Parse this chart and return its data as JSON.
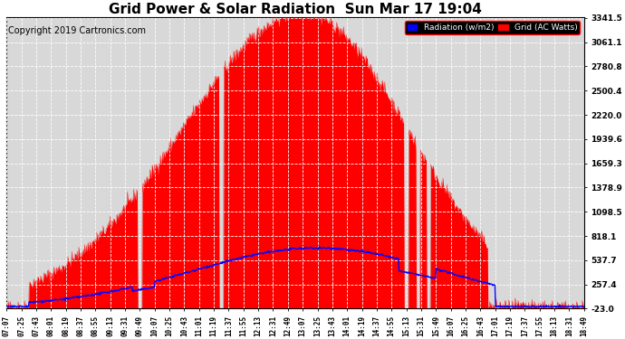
{
  "title": "Grid Power & Solar Radiation  Sun Mar 17 19:04",
  "copyright": "Copyright 2019 Cartronics.com",
  "y_ticks": [
    3341.5,
    3061.1,
    2780.8,
    2500.4,
    2220.0,
    1939.6,
    1659.3,
    1378.9,
    1098.5,
    818.1,
    537.7,
    257.4,
    -23.0
  ],
  "x_labels": [
    "07:07",
    "07:25",
    "07:43",
    "08:01",
    "08:19",
    "08:37",
    "08:55",
    "09:13",
    "09:31",
    "09:49",
    "10:07",
    "10:25",
    "10:43",
    "11:01",
    "11:19",
    "11:37",
    "11:55",
    "12:13",
    "12:31",
    "12:49",
    "13:07",
    "13:25",
    "13:43",
    "14:01",
    "14:19",
    "14:37",
    "14:55",
    "15:13",
    "15:31",
    "15:49",
    "16:07",
    "16:25",
    "16:43",
    "17:01",
    "17:19",
    "17:37",
    "17:55",
    "18:13",
    "18:31",
    "18:49"
  ],
  "legend_radiation_color": "#0000ff",
  "legend_radiation_label": "Radiation (w/m2)",
  "legend_grid_color": "#ff0000",
  "legend_grid_label": "Grid (AC Watts)",
  "bg_color": "#ffffff",
  "plot_bg_color": "#d8d8d8",
  "grid_color": "#ffffff",
  "title_color": "#000000",
  "copyright_color": "#000000",
  "title_fontsize": 11,
  "copyright_fontsize": 7,
  "ymin": -23.0,
  "ymax": 3341.5,
  "figwidth": 6.9,
  "figheight": 3.75,
  "dpi": 100
}
